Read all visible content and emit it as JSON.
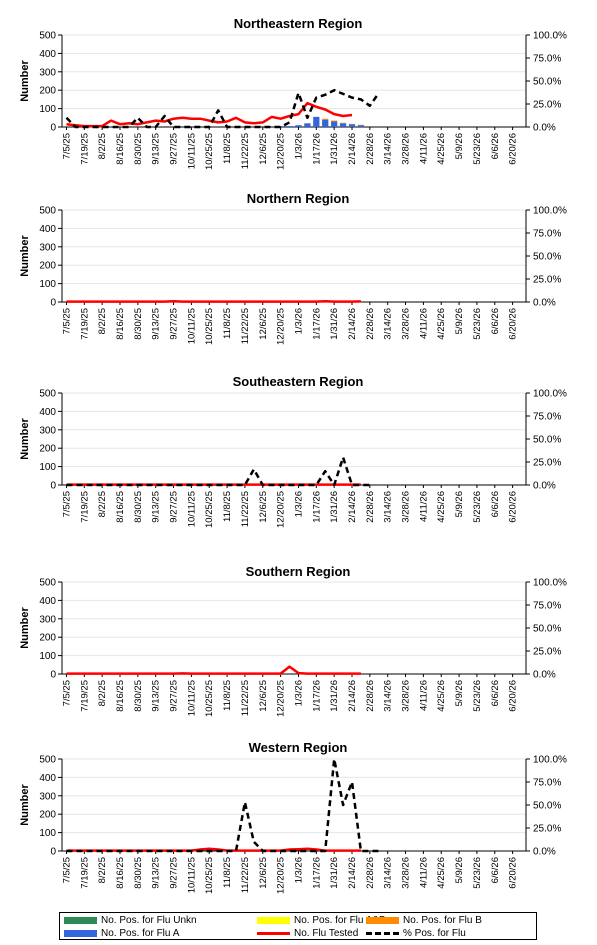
{
  "colors": {
    "flu_unkn": "#2e8b57",
    "flu_ab": "#ffff00",
    "flu_b": "#ff8c00",
    "flu_a": "#3366dd",
    "flu_tested": "#ff0000",
    "pct_pos": "#000000"
  },
  "legend": {
    "unkn": "No. Pos. for Flu Unkn",
    "ab": "No. Pos. for Flu A&B",
    "b": "No. Pos. for Flu B",
    "a": "No. Pos. for Flu A",
    "tested": "No. Flu Tested",
    "pct": "% Pos. for Flu"
  },
  "chart_data": [
    {
      "type": "bar",
      "title": "Northeastern Region",
      "ylabel": "Number",
      "ylim": [
        0,
        500
      ],
      "y2lim": [
        0,
        100
      ],
      "yticks": [
        "0",
        "100",
        "200",
        "300",
        "400",
        "500"
      ],
      "y2ticks": [
        "0.0%",
        "25.0%",
        "50.0%",
        "75.0%",
        "100.0%"
      ],
      "categories": [
        "7/5/25",
        "7/19/25",
        "8/2/25",
        "8/16/25",
        "8/30/25",
        "9/13/25",
        "9/27/25",
        "10/11/25",
        "10/25/25",
        "11/8/25",
        "11/22/25",
        "12/6/25",
        "12/20/25",
        "1/3/26",
        "1/17/26",
        "1/31/26",
        "2/14/26",
        "2/28/26",
        "3/14/26",
        "3/28/26",
        "4/11/26",
        "4/25/26",
        "5/9/26",
        "5/23/26",
        "6/6/26",
        "6/20/26"
      ],
      "tested": [
        15,
        10,
        5,
        5,
        5,
        35,
        15,
        20,
        15,
        25,
        35,
        30,
        45,
        50,
        45,
        45,
        35,
        25,
        30,
        50,
        25,
        20,
        25,
        55,
        45,
        60,
        70,
        130,
        110,
        95,
        70,
        60,
        65
      ],
      "pct": [
        10,
        0,
        0,
        0,
        0,
        0,
        0,
        0,
        10,
        0,
        0,
        12,
        0,
        0,
        0,
        0,
        0,
        18,
        0,
        0,
        0,
        0,
        0,
        0,
        0,
        5,
        37,
        10,
        32,
        35,
        40,
        36,
        32,
        30,
        23,
        37
      ],
      "pct_start": 0,
      "flu_a": [
        0,
        0,
        0,
        0,
        0,
        0,
        0,
        0,
        0,
        0,
        0,
        0,
        0,
        0,
        0,
        0,
        0,
        0,
        0,
        0,
        0,
        0,
        0,
        0,
        5,
        5,
        10,
        20,
        55,
        40,
        30,
        20,
        15,
        10
      ],
      "flu_b": [
        0,
        0,
        0,
        0,
        0,
        0,
        0,
        0,
        0,
        0,
        0,
        0,
        0,
        0,
        0,
        0,
        0,
        0,
        0,
        0,
        0,
        0,
        0,
        0,
        0,
        0,
        0,
        0,
        0,
        5,
        5,
        3,
        2,
        2
      ]
    },
    {
      "type": "bar",
      "title": "Northern Region",
      "ylabel": "Number",
      "ylim": [
        0,
        500
      ],
      "y2lim": [
        0,
        100
      ],
      "yticks": [
        "0",
        "100",
        "200",
        "300",
        "400",
        "500"
      ],
      "y2ticks": [
        "0.0%",
        "25.0%",
        "50.0%",
        "75.0%",
        "100.0%"
      ],
      "categories": [
        "7/5/25",
        "7/19/25",
        "8/2/25",
        "8/16/25",
        "8/30/25",
        "9/13/25",
        "9/27/25",
        "10/11/25",
        "10/25/25",
        "11/8/25",
        "11/22/25",
        "12/6/25",
        "12/20/25",
        "1/3/26",
        "1/17/26",
        "1/31/26",
        "2/14/26",
        "2/28/26",
        "3/14/26",
        "3/28/26",
        "4/11/26",
        "4/25/26",
        "5/9/26",
        "5/23/26",
        "6/6/26",
        "6/20/26"
      ],
      "tested": [
        2,
        2,
        2,
        2,
        2,
        2,
        2,
        2,
        2,
        2,
        2,
        2,
        4,
        2,
        2,
        2,
        2,
        2,
        2,
        2,
        2,
        2,
        2,
        2,
        2,
        2,
        2,
        2,
        2,
        4,
        2,
        2,
        2,
        3
      ],
      "pct": [],
      "pct_start": 0,
      "flu_a": [],
      "flu_b": []
    },
    {
      "type": "bar",
      "title": "Southeastern Region",
      "ylabel": "Number",
      "ylim": [
        0,
        500
      ],
      "y2lim": [
        0,
        100
      ],
      "yticks": [
        "0",
        "100",
        "200",
        "300",
        "400",
        "500"
      ],
      "y2ticks": [
        "0.0%",
        "25.0%",
        "50.0%",
        "75.0%",
        "100.0%"
      ],
      "categories": [
        "7/5/25",
        "7/19/25",
        "8/2/25",
        "8/16/25",
        "8/30/25",
        "9/13/25",
        "9/27/25",
        "10/11/25",
        "10/25/25",
        "11/8/25",
        "11/22/25",
        "12/6/25",
        "12/20/25",
        "1/3/26",
        "1/17/26",
        "1/31/26",
        "2/14/26",
        "2/28/26",
        "3/14/26",
        "3/28/26",
        "4/11/26",
        "4/25/26",
        "5/9/26",
        "5/23/26",
        "6/6/26",
        "6/20/26"
      ],
      "tested": [
        2,
        2,
        2,
        2,
        2,
        2,
        2,
        2,
        2,
        2,
        2,
        2,
        2,
        2,
        2,
        2,
        2,
        2,
        2,
        2,
        2,
        2,
        2,
        2,
        2,
        2,
        2,
        2,
        2,
        2,
        2,
        2,
        2,
        2
      ],
      "pct": [
        0,
        0,
        0,
        0,
        0,
        0,
        0,
        0,
        0,
        0,
        0,
        0,
        0,
        0,
        0,
        0,
        0,
        0,
        0,
        0,
        0,
        17,
        0,
        0,
        0,
        0,
        0,
        0,
        0,
        15,
        0,
        30,
        0,
        0,
        0
      ],
      "pct_start": 0,
      "flu_a": [],
      "flu_b": []
    },
    {
      "type": "bar",
      "title": "Southern Region",
      "ylabel": "Number",
      "ylim": [
        0,
        500
      ],
      "y2lim": [
        0,
        100
      ],
      "yticks": [
        "0",
        "100",
        "200",
        "300",
        "400",
        "500"
      ],
      "y2ticks": [
        "0.0%",
        "25.0%",
        "50.0%",
        "75.0%",
        "100.0%"
      ],
      "categories": [
        "7/5/25",
        "7/19/25",
        "8/2/25",
        "8/16/25",
        "8/30/25",
        "9/13/25",
        "9/27/25",
        "10/11/25",
        "10/25/25",
        "11/8/25",
        "11/22/25",
        "12/6/25",
        "12/20/25",
        "1/3/26",
        "1/17/26",
        "1/31/26",
        "2/14/26",
        "2/28/26",
        "3/14/26",
        "3/28/26",
        "4/11/26",
        "4/25/26",
        "5/9/26",
        "5/23/26",
        "6/6/26",
        "6/20/26"
      ],
      "tested": [
        2,
        2,
        2,
        2,
        2,
        2,
        2,
        2,
        2,
        2,
        2,
        2,
        2,
        3,
        2,
        2,
        2,
        2,
        2,
        2,
        2,
        2,
        2,
        2,
        2,
        40,
        5,
        2,
        2,
        2,
        2,
        2,
        2,
        2
      ],
      "pct": [],
      "pct_start": 0,
      "flu_a": [],
      "flu_b": []
    },
    {
      "type": "bar",
      "title": "Western Region",
      "ylabel": "Number",
      "ylim": [
        0,
        500
      ],
      "y2lim": [
        0,
        100
      ],
      "yticks": [
        "0",
        "100",
        "200",
        "300",
        "400",
        "500"
      ],
      "y2ticks": [
        "0.0%",
        "25.0%",
        "50.0%",
        "75.0%",
        "100.0%"
      ],
      "categories": [
        "7/5/25",
        "7/19/25",
        "8/2/25",
        "8/16/25",
        "8/30/25",
        "9/13/25",
        "9/27/25",
        "10/11/25",
        "10/25/25",
        "11/8/25",
        "11/22/25",
        "12/6/25",
        "12/20/25",
        "1/3/26",
        "1/17/26",
        "1/31/26",
        "2/14/26",
        "2/28/26",
        "3/14/26",
        "3/28/26",
        "4/11/26",
        "4/25/26",
        "5/9/26",
        "5/23/26",
        "6/6/26",
        "6/20/26"
      ],
      "tested": [
        2,
        2,
        2,
        2,
        2,
        2,
        2,
        2,
        2,
        2,
        2,
        2,
        2,
        2,
        2,
        8,
        12,
        8,
        2,
        2,
        2,
        2,
        2,
        2,
        2,
        8,
        10,
        12,
        8,
        2,
        2,
        2,
        2,
        2
      ],
      "pct": [
        0,
        0,
        0,
        0,
        0,
        0,
        0,
        0,
        0,
        0,
        0,
        0,
        0,
        0,
        0,
        0,
        0,
        0,
        0,
        0,
        53,
        10,
        0,
        0,
        0,
        0,
        0,
        0,
        0,
        0,
        100,
        50,
        75,
        0,
        0,
        0
      ],
      "pct_start": 0,
      "flu_a": [],
      "flu_b": []
    }
  ]
}
